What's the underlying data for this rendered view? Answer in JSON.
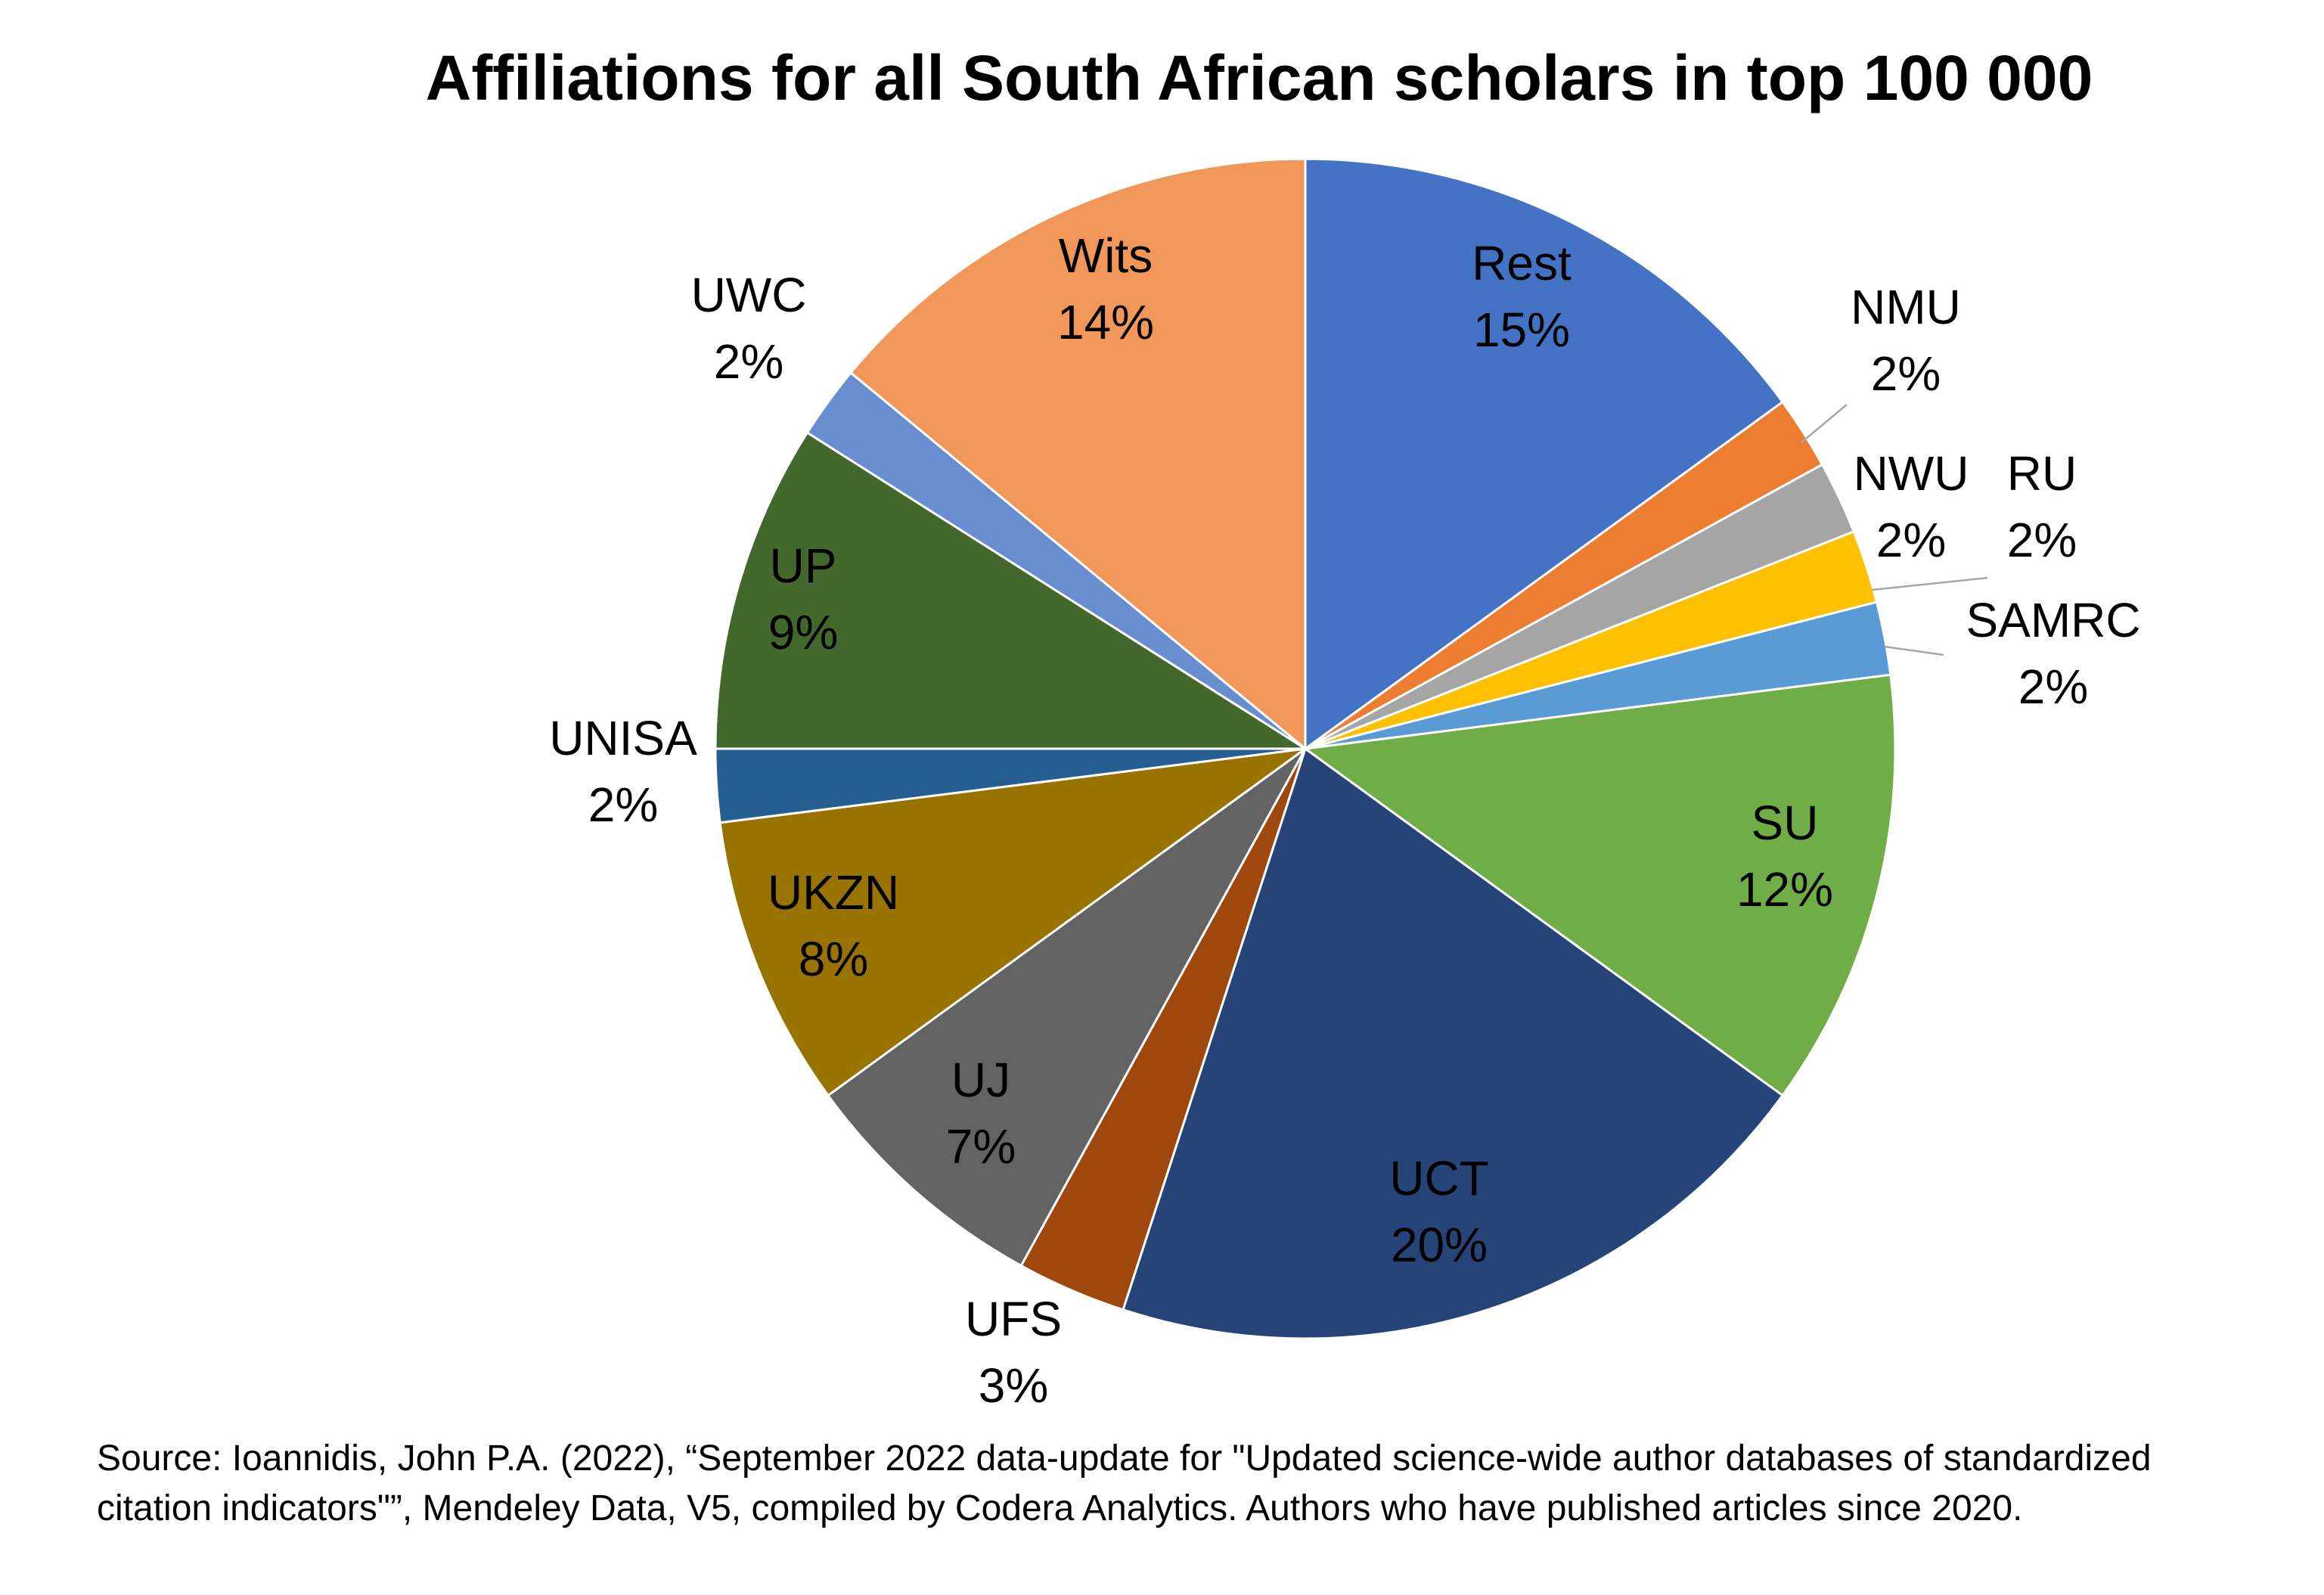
{
  "chart_data": {
    "type": "pie",
    "title": "Affiliations for all South African scholars in top 100 000",
    "start_angle_deg": 0,
    "direction": "clockwise",
    "slices": [
      {
        "label": "Rest",
        "value": 15,
        "display": "15%",
        "color": "#4472C4"
      },
      {
        "label": "NMU",
        "value": 2,
        "display": "2%",
        "color": "#ED7D31"
      },
      {
        "label": "NWU",
        "value": 2,
        "display": "2%",
        "color": "#A5A5A5"
      },
      {
        "label": "RU",
        "value": 2,
        "display": "2%",
        "color": "#FFC000"
      },
      {
        "label": "SAMRC",
        "value": 2,
        "display": "2%",
        "color": "#5B9BD5"
      },
      {
        "label": "SU",
        "value": 12,
        "display": "12%",
        "color": "#70AD47"
      },
      {
        "label": "UCT",
        "value": 20,
        "display": "20%",
        "color": "#264478"
      },
      {
        "label": "UFS",
        "value": 3,
        "display": "3%",
        "color": "#9E480E"
      },
      {
        "label": "UJ",
        "value": 7,
        "display": "7%",
        "color": "#636363"
      },
      {
        "label": "UKZN",
        "value": 8,
        "display": "8%",
        "color": "#997300"
      },
      {
        "label": "UNISA",
        "value": 2,
        "display": "2%",
        "color": "#255E91"
      },
      {
        "label": "UP",
        "value": 9,
        "display": "9%",
        "color": "#43682B"
      },
      {
        "label": "UWC",
        "value": 2,
        "display": "2%",
        "color": "#698ED0"
      },
      {
        "label": "Wits",
        "value": 14,
        "display": "14%",
        "color": "#F1975A"
      }
    ],
    "legend": "none",
    "data_labels": "category name and percentage"
  },
  "source_note": "Source: Ioannidis, John P.A. (2022), “September 2022 data-update for \"Updated science-wide author databases of standardized citation indicators\"”, Mendeley Data, V5, compiled by Codera Analytics.  Authors who have published articles since 2020."
}
